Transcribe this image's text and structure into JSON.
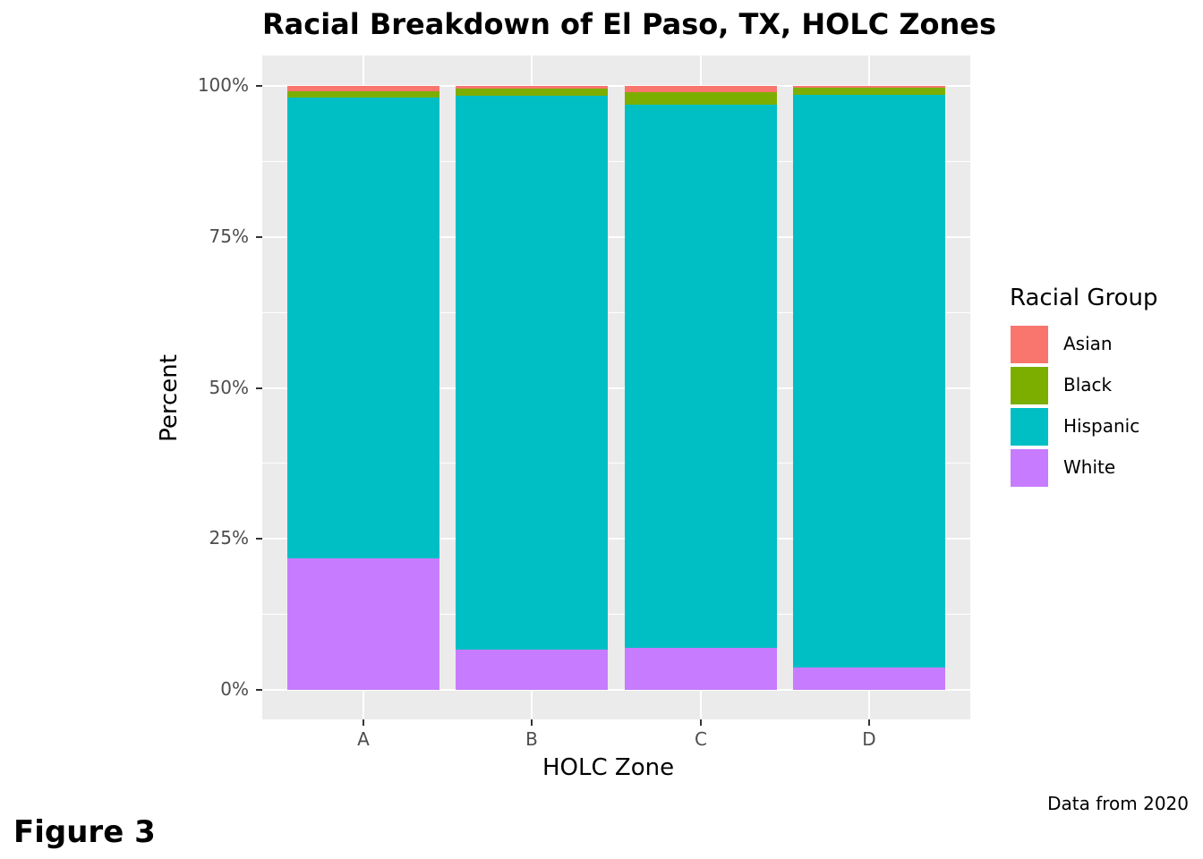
{
  "title": "Racial Breakdown of El Paso, TX, HOLC Zones",
  "xlabel": "HOLC Zone",
  "ylabel": "Percent",
  "yticks": [
    "0%",
    "25%",
    "50%",
    "75%",
    "100%"
  ],
  "legend": {
    "title": "Racial Group",
    "items": [
      {
        "label": "Asian",
        "color": "#F8766D"
      },
      {
        "label": "Black",
        "color": "#7CAE00"
      },
      {
        "label": "Hispanic",
        "color": "#00BFC4"
      },
      {
        "label": "White",
        "color": "#C77CFF"
      }
    ]
  },
  "caption": "Data from 2020",
  "figure_label": "Figure 3",
  "chart_data": {
    "type": "bar",
    "stacked": true,
    "normalized": true,
    "title": "Racial Breakdown of El Paso, TX, HOLC Zones",
    "xlabel": "HOLC Zone",
    "ylabel": "Percent",
    "ylim": [
      0,
      100
    ],
    "categories": [
      "A",
      "B",
      "C",
      "D"
    ],
    "series": [
      {
        "name": "Asian",
        "color": "#F8766D",
        "values": [
          0.9,
          0.4,
          1.0,
          0.3
        ]
      },
      {
        "name": "Black",
        "color": "#7CAE00",
        "values": [
          1.0,
          1.2,
          2.1,
          1.2
        ]
      },
      {
        "name": "Hispanic",
        "color": "#00BFC4",
        "values": [
          76.3,
          91.7,
          89.9,
          94.8
        ]
      },
      {
        "name": "White",
        "color": "#C77CFF",
        "values": [
          21.8,
          6.7,
          7.0,
          3.7
        ]
      }
    ],
    "legend_position": "right",
    "grid": true
  }
}
